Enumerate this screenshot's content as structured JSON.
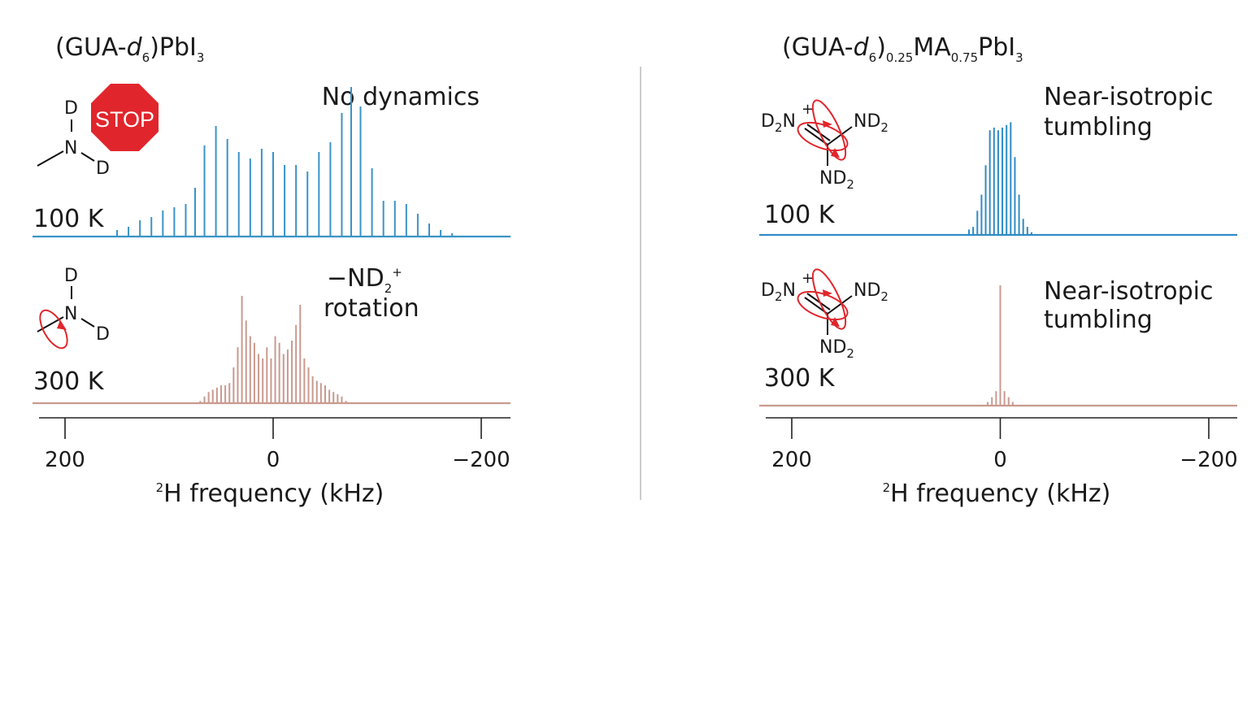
{
  "chart_data": [
    {
      "type": "line",
      "title_main": "(GUA-",
      "title_italic": "d",
      "title_sub1": "6",
      "title_after": ")PbI",
      "title_sub2": "3",
      "xlabel_sup": "2",
      "xlabel": "H frequency (kHz)",
      "x_ticks": [
        "200",
        "0",
        "−200"
      ],
      "xlim": [
        225,
        -225
      ],
      "series": [
        {
          "name": "100 K",
          "color": "#3a93c8",
          "annotation": "No dynamics",
          "x": [
            150,
            139,
            128,
            117,
            106,
            95,
            84,
            75,
            66,
            55,
            44,
            33,
            22,
            11,
            0,
            -11,
            -22,
            -33,
            -44,
            -55,
            -66,
            -75,
            -84,
            -95,
            -106,
            -117,
            -128,
            -139,
            -150,
            -161,
            -172
          ],
          "y": [
            2,
            3,
            5,
            6,
            8,
            9,
            10,
            15,
            28,
            34,
            30,
            26,
            24,
            27,
            26,
            22,
            22,
            20,
            26,
            29,
            38,
            46,
            40,
            21,
            11,
            11,
            10,
            7,
            4,
            2,
            1
          ]
        },
        {
          "name": "300 K",
          "color": "#c99a8f",
          "annotation": "−ND",
          "annotation_sub": "2",
          "annotation_sup": "+",
          "annotation_line2": "rotation",
          "x": [
            70,
            66,
            62,
            58,
            54,
            50,
            46,
            42,
            38,
            34,
            30,
            26,
            22,
            18,
            14,
            10,
            6,
            2,
            -2,
            -6,
            -10,
            -14,
            -18,
            -22,
            -26,
            -30,
            -34,
            -38,
            -42,
            -46,
            -50,
            -54,
            -58,
            -62,
            -66,
            -70
          ],
          "y": [
            1,
            3,
            5,
            6,
            7,
            8,
            8,
            9,
            16,
            25,
            48,
            37,
            30,
            27,
            22,
            20,
            25,
            20,
            30,
            27,
            22,
            24,
            28,
            35,
            44,
            20,
            16,
            12,
            10,
            9,
            8,
            6,
            5,
            4,
            3,
            1
          ]
        }
      ]
    },
    {
      "type": "line",
      "title_main": "(GUA-",
      "title_italic": "d",
      "title_sub1": "6",
      "title_after": ")",
      "title_sub2": "0.25",
      "title_ma": "MA",
      "title_sub3": "0.75",
      "title_pb": "PbI",
      "title_sub4": "3",
      "xlabel_sup": "2",
      "xlabel": "H frequency (kHz)",
      "x_ticks": [
        "200",
        "0",
        "−200"
      ],
      "xlim": [
        225,
        -225
      ],
      "series": [
        {
          "name": "100 K",
          "color": "#2f8bc6",
          "annotation": "Near-isotropic",
          "annotation_line2": "tumbling",
          "x": [
            30,
            26,
            22,
            18,
            14,
            10,
            6,
            2,
            -2,
            -6,
            -10,
            -14,
            -18,
            -22,
            -26,
            -30
          ],
          "y": [
            4,
            6,
            18,
            30,
            52,
            78,
            80,
            78,
            80,
            82,
            84,
            58,
            30,
            12,
            6,
            2
          ]
        },
        {
          "name": "300 K",
          "color": "#c99a8f",
          "annotation": "Near-isotropic",
          "annotation_line2": "tumbling",
          "x": [
            12,
            8,
            4,
            0,
            -4,
            -8,
            -12
          ],
          "y": [
            3,
            7,
            12,
            100,
            12,
            7,
            3
          ]
        }
      ]
    }
  ],
  "molecules": {
    "left_atoms": {
      "d_top": "D",
      "n": "N",
      "d_right": "D"
    },
    "stop_sign": "STOP",
    "right_atoms": {
      "d2n": "D",
      "d2n_sub": "2",
      "d2n_n": "N",
      "plus": "+",
      "nd2_right": "ND",
      "nd2_right_sub": "2",
      "nd2_bottom": "ND",
      "nd2_bottom_sub": "2"
    }
  },
  "colors": {
    "accent_red": "#e0262c",
    "axis": "#222222"
  }
}
